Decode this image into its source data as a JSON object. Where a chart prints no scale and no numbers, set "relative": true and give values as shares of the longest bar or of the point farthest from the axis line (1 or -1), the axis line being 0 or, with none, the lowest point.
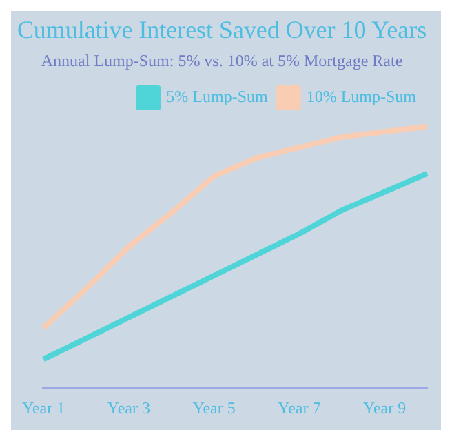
{
  "chart_data": {
    "type": "line",
    "title": "Cumulative Interest Saved Over 10 Years",
    "subtitle": "Annual Lump-Sum: 5% vs. 10% at 5% Mortgage Rate",
    "categories": [
      "Year 1",
      null,
      "Year 3",
      null,
      "Year 5",
      null,
      "Year 7",
      null,
      "Year 9",
      null
    ],
    "relative": true,
    "grid": false,
    "legend": "top right",
    "marker": "none",
    "line_style": "solid",
    "series": [
      {
        "name": "5% Lump-Sum",
        "color": "#4fd5d8",
        "values": [
          0.11,
          0.19,
          0.27,
          0.35,
          0.43,
          0.51,
          0.59,
          0.68,
          0.75,
          0.82
        ]
      },
      {
        "name": "10% Lump-Sum",
        "color": "#f9cdb3",
        "values": [
          0.23,
          0.38,
          0.54,
          0.67,
          0.81,
          0.88,
          0.92,
          0.96,
          0.98,
          1
        ]
      }
    ]
  }
}
